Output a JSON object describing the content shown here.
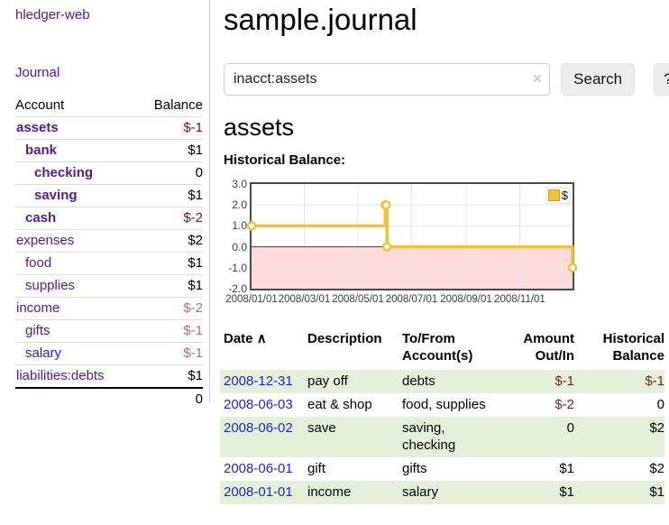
{
  "sidebar": {
    "brand": "hledger-web",
    "nav": [
      "Journal"
    ],
    "accounts_table": {
      "headers": {
        "account": "Account",
        "balance": "Balance"
      },
      "accounts": [
        {
          "name": "assets",
          "indent": 0,
          "bold": true,
          "link_color": "purple",
          "balance": "$-1",
          "balance_style": "neg-bold"
        },
        {
          "name": "bank",
          "indent": 1,
          "bold": true,
          "link_color": "purple",
          "balance": "$1",
          "balance_style": "pos"
        },
        {
          "name": "checking",
          "indent": 2,
          "bold": true,
          "link_color": "purple",
          "balance": "0",
          "balance_style": "pos"
        },
        {
          "name": "saving",
          "indent": 2,
          "bold": true,
          "link_color": "purple",
          "balance": "$1",
          "balance_style": "pos"
        },
        {
          "name": "cash",
          "indent": 1,
          "bold": true,
          "link_color": "purple",
          "balance": "$-2",
          "balance_style": "neg-bold"
        },
        {
          "name": "expenses",
          "indent": 0,
          "bold": false,
          "link_color": "purple",
          "balance": "$2",
          "balance_style": "pos"
        },
        {
          "name": "food",
          "indent": 1,
          "bold": false,
          "link_color": "purple",
          "balance": "$1",
          "balance_style": "pos"
        },
        {
          "name": "supplies",
          "indent": 1,
          "bold": false,
          "link_color": "purple",
          "balance": "$1",
          "balance_style": "pos"
        },
        {
          "name": "income",
          "indent": 0,
          "bold": false,
          "link_color": "purple",
          "balance": "$-2",
          "balance_style": "neg-light"
        },
        {
          "name": "gifts",
          "indent": 1,
          "bold": false,
          "link_color": "purple",
          "balance": "$-1",
          "balance_style": "neg-light"
        },
        {
          "name": "salary",
          "indent": 1,
          "bold": false,
          "link_color": "blue",
          "balance": "$-1",
          "balance_style": "neg-light"
        },
        {
          "name": "liabilities:debts",
          "indent": 0,
          "bold": false,
          "link_color": "purple",
          "balance": "$1",
          "balance_style": "pos"
        }
      ],
      "total": "0"
    }
  },
  "main": {
    "title": "sample.journal",
    "search": {
      "value": "inacct:assets",
      "clear_icon": "×",
      "button_label": "Search",
      "help_label": "?"
    },
    "account_heading": "assets",
    "chart_label": "Historical Balance:",
    "register_table": {
      "headers": {
        "date": "Date",
        "sort_icon": "∧",
        "description": "Description",
        "accounts": "To/From Account(s)",
        "amount": "Amount Out/In",
        "balance": "Historical Balance"
      },
      "rows": [
        {
          "date": "2008-12-31",
          "description": "pay off",
          "accounts": "debts",
          "amount": "$-1",
          "amount_style": "neg",
          "balance": "$-1",
          "balance_style": "neg",
          "shaded": true
        },
        {
          "date": "2008-06-03",
          "description": "eat & shop",
          "accounts": "food, supplies",
          "amount": "$-2",
          "amount_style": "neg",
          "balance": "0",
          "balance_style": "pos",
          "shaded": false
        },
        {
          "date": "2008-06-02",
          "description": "save",
          "accounts": "saving, checking",
          "amount": "0",
          "amount_style": "pos",
          "balance": "$2",
          "balance_style": "pos",
          "shaded": true
        },
        {
          "date": "2008-06-01",
          "description": "gift",
          "accounts": "gifts",
          "amount": "$1",
          "amount_style": "pos",
          "balance": "$2",
          "balance_style": "pos",
          "shaded": false
        },
        {
          "date": "2008-01-01",
          "description": "income",
          "accounts": "salary",
          "amount": "$1",
          "amount_style": "pos",
          "balance": "$1",
          "balance_style": "pos",
          "shaded": true
        }
      ]
    }
  },
  "chart_data": {
    "type": "line",
    "title": "Historical Balance",
    "step": true,
    "series": [
      {
        "name": "$",
        "color": "#edc240",
        "points": [
          {
            "date": "2008-01-01",
            "x_day": 0,
            "value": 1
          },
          {
            "date": "2008-06-01",
            "x_day": 152,
            "value": 2
          },
          {
            "date": "2008-06-02",
            "x_day": 153,
            "value": 2
          },
          {
            "date": "2008-06-03",
            "x_day": 154,
            "value": 0
          },
          {
            "date": "2008-12-31",
            "x_day": 365,
            "value": -1
          }
        ]
      }
    ],
    "xlim_days": [
      0,
      365
    ],
    "ylim": [
      -2,
      3
    ],
    "x_ticks": [
      {
        "day": 0,
        "label": "2008/01/01"
      },
      {
        "day": 60,
        "label": "2008/03/01"
      },
      {
        "day": 121,
        "label": "2008/05/01"
      },
      {
        "day": 182,
        "label": "2008/07/01"
      },
      {
        "day": 244,
        "label": "2008/09/01"
      },
      {
        "day": 305,
        "label": "2008/11/01"
      }
    ],
    "y_ticks": [
      3.0,
      2.0,
      1.0,
      0.0,
      -1.0,
      -2.0
    ],
    "grid": true,
    "negative_region_color": "#fcdbdb",
    "zero_line_color": "#9b0f0f",
    "grid_color": "#e4e4e4",
    "legend_label": "$",
    "legend_position": "top-right"
  }
}
